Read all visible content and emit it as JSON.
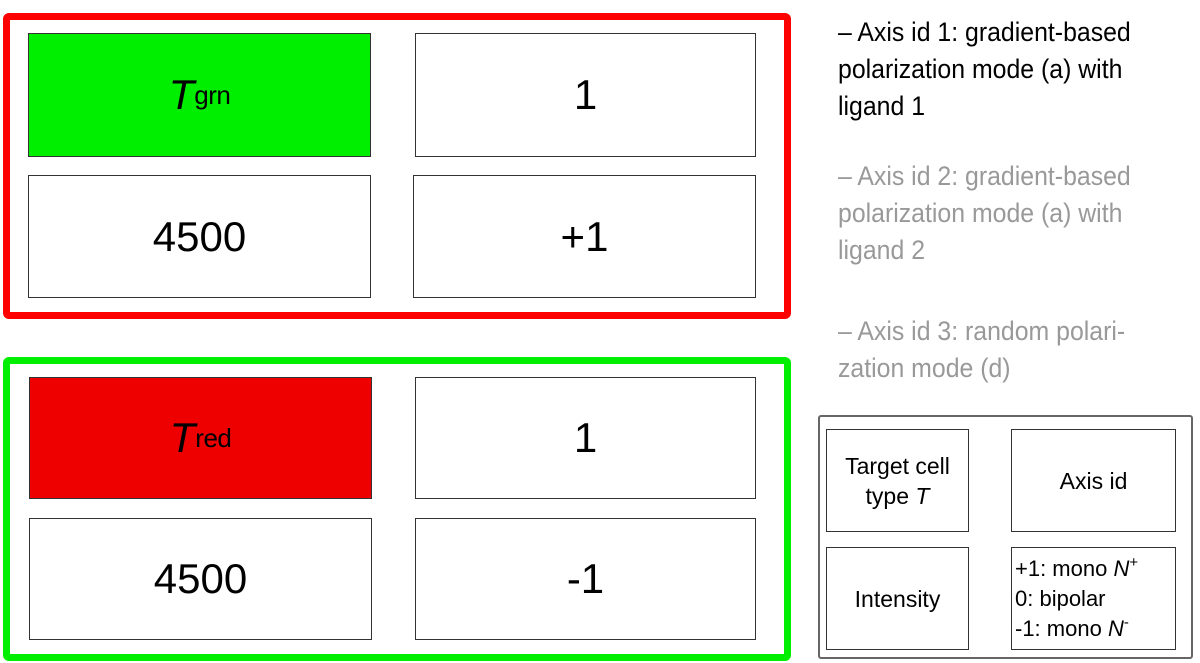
{
  "groups": [
    {
      "border_color": "#ff0000",
      "target": {
        "symbol": "T",
        "subscript": "grn",
        "fill": "#00ee00"
      },
      "axis_id": "1",
      "intensity": "4500",
      "sign": "+1"
    },
    {
      "border_color": "#00ee00",
      "target": {
        "symbol": "T",
        "subscript": "red",
        "fill": "#ee0000"
      },
      "axis_id": "1",
      "intensity": "4500",
      "sign": "-1"
    }
  ],
  "notes": [
    {
      "text": "– Axis id 1: gradient-based polarization mode (a) with ligand 1",
      "color": "#000000"
    },
    {
      "text": "– Axis id 2: gradient-based polarization mode (a) with ligand 2",
      "color": "#999999"
    },
    {
      "text": "– Axis id 3: random polari-zation mode (d)",
      "color": "#999999"
    }
  ],
  "legend": {
    "target_label": "Target cell",
    "target_label_2": "type",
    "target_symbol": "T",
    "axis_label": "Axis id",
    "intensity_label": "Intensity",
    "key": [
      {
        "text": "+1: mono ",
        "symbol": "N",
        "sup": "+"
      },
      {
        "text": "0: bipolar"
      },
      {
        "text": "-1: mono ",
        "symbol": "N",
        "sup": "-"
      }
    ]
  }
}
